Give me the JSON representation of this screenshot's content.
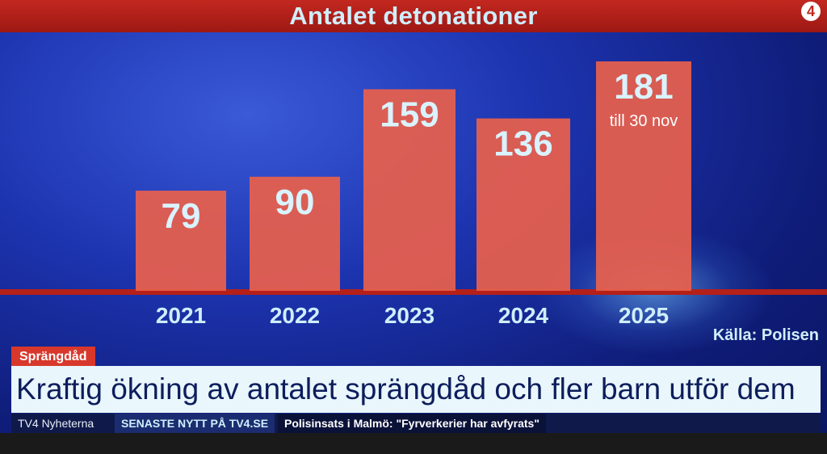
{
  "title": "Antalet detonationer",
  "logo": "4",
  "chart_data": {
    "type": "bar",
    "title": "Antalet detonationer",
    "categories": [
      "2021",
      "2022",
      "2023",
      "2024",
      "2025"
    ],
    "values": [
      79,
      90,
      159,
      136,
      181
    ],
    "labels": [
      "79",
      "90",
      "159",
      "136",
      "181"
    ],
    "annotations": [
      {
        "category": "2025",
        "text": "till 30 nov"
      }
    ],
    "bar_color": "#e8604c",
    "ylim": [
      0,
      200
    ],
    "grid": false,
    "legend": "none"
  },
  "source": "Källa: Polisen",
  "tag": "Sprängdåd",
  "headline": "Kraftig ökning av antalet sprängdåd och fler barn utför dem",
  "ticker": {
    "brand": "TV4 Nyheterna",
    "latest": "SENASTE NYTT PÅ TV4.SE",
    "news": "Polisinsats i Malmö: \"Fyrverkerier har avfyrats\""
  },
  "colors": {
    "accent_red": "#c2281f",
    "bar": "#e8604c",
    "text_light": "#cfeefb",
    "headline_text": "#0d1d5c"
  }
}
